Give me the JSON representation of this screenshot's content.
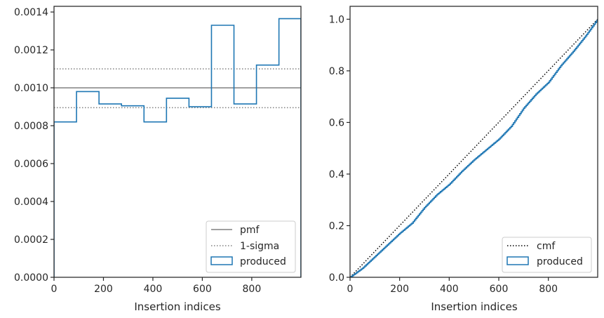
{
  "chart_data": [
    {
      "type": "step-histogram",
      "xlabel": "Insertion indices",
      "ylabel": "",
      "xlim": [
        0,
        999
      ],
      "ylim": [
        0,
        0.00143
      ],
      "xticks": [
        0,
        200,
        400,
        600,
        800
      ],
      "yticks": [
        0,
        0.0002,
        0.0004,
        0.0006,
        0.0008,
        0.001,
        0.0012,
        0.0014
      ],
      "ytick_labels": [
        "0.0000",
        "0.0002",
        "0.0004",
        "0.0006",
        "0.0008",
        "0.0010",
        "0.0012",
        "0.0014"
      ],
      "bin_edges": [
        0,
        91,
        182,
        273,
        364,
        455,
        546,
        637,
        728,
        819,
        910,
        999
      ],
      "series": [
        {
          "name": "produced",
          "values": [
            0.00082,
            0.00098,
            0.000915,
            0.000905,
            0.00082,
            0.000945,
            0.0009,
            0.00133,
            0.000915,
            0.00112,
            0.001365
          ],
          "color": "#1f77b4"
        }
      ],
      "reference_lines": [
        {
          "name": "pmf",
          "y": 0.001,
          "style": "solid",
          "color": "#808080"
        },
        {
          "name": "1-sigma",
          "y": [
            0.0011,
            0.000895
          ],
          "style": "dotted",
          "color": "#808080"
        }
      ],
      "legend": {
        "placement": "lower-right",
        "entries": [
          {
            "label": "pmf",
            "kind": "line-solid",
            "color": "#808080"
          },
          {
            "label": "1-sigma",
            "kind": "line-dotted",
            "color": "#808080"
          },
          {
            "label": "produced",
            "kind": "patch",
            "color": "#1f77b4"
          }
        ]
      },
      "grid": false
    },
    {
      "type": "line",
      "xlabel": "Insertion indices",
      "ylabel": "",
      "xlim": [
        0,
        999
      ],
      "ylim": [
        0,
        1.05
      ],
      "xticks": [
        0,
        200,
        400,
        600,
        800
      ],
      "yticks": [
        0,
        0.2,
        0.4,
        0.6,
        0.8,
        1.0
      ],
      "ytick_labels": [
        "0.0",
        "0.2",
        "0.4",
        "0.6",
        "0.8",
        "1.0"
      ],
      "series": [
        {
          "name": "cmf",
          "style": "dotted",
          "color": "#000000",
          "x": [
            0,
            999
          ],
          "y": [
            0,
            1.0
          ]
        },
        {
          "name": "produced",
          "style": "step",
          "color": "#1f77b4",
          "x": [
            0,
            50,
            100,
            150,
            200,
            250,
            300,
            350,
            400,
            450,
            500,
            550,
            600,
            650,
            700,
            750,
            800,
            850,
            900,
            950,
            999
          ],
          "y": [
            0,
            0.035,
            0.08,
            0.125,
            0.17,
            0.21,
            0.27,
            0.32,
            0.36,
            0.41,
            0.455,
            0.495,
            0.535,
            0.585,
            0.655,
            0.71,
            0.755,
            0.82,
            0.875,
            0.935,
            1.0
          ]
        }
      ],
      "legend": {
        "placement": "lower-right",
        "entries": [
          {
            "label": "cmf",
            "kind": "line-dotted",
            "color": "#000000"
          },
          {
            "label": "produced",
            "kind": "patch",
            "color": "#1f77b4"
          }
        ]
      },
      "grid": false
    }
  ]
}
